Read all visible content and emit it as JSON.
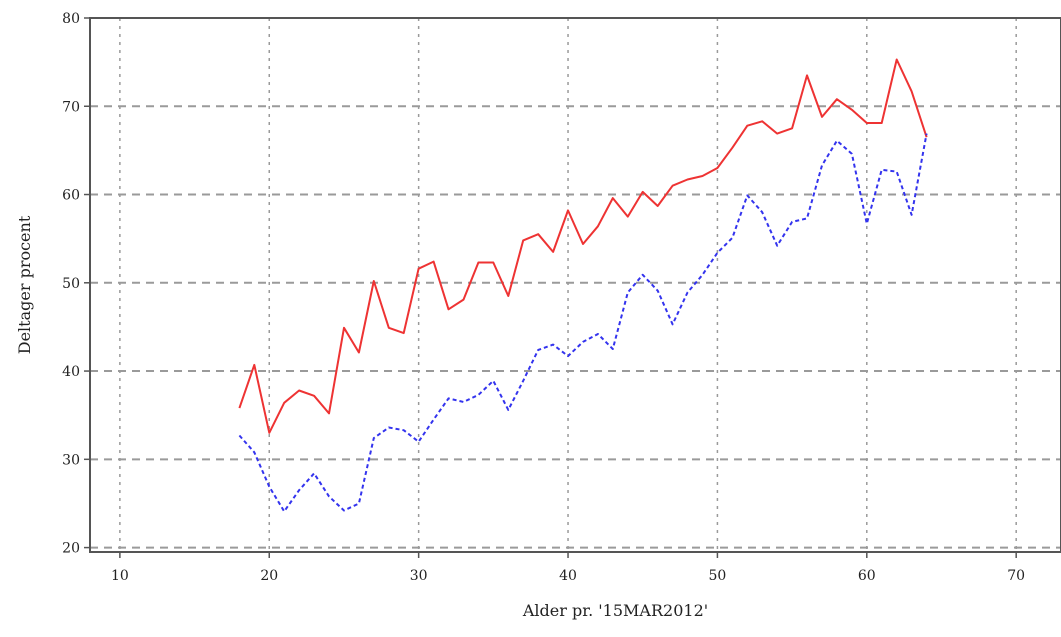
{
  "chart_data": {
    "type": "line",
    "title": "",
    "xlabel": "Alder pr. '15MAR2012'",
    "ylabel": "Deltager procent",
    "xlim": [
      8,
      73
    ],
    "ylim": [
      19.5,
      80
    ],
    "xticks": [
      10,
      20,
      30,
      40,
      50,
      60,
      70
    ],
    "yticks": [
      20,
      30,
      40,
      50,
      60,
      70,
      80
    ],
    "grid": true,
    "colors": {
      "series1": "#ee3333",
      "series2": "#3333ee",
      "grid": "#9a9a9a",
      "frame": "#555555"
    },
    "series": [
      {
        "style": "solid",
        "x": [
          18,
          19,
          20,
          21,
          22,
          23,
          24,
          25,
          26,
          27,
          28,
          29,
          30,
          31,
          32,
          33,
          34,
          35,
          36,
          37,
          38,
          39,
          40,
          41,
          42,
          43,
          44,
          45,
          46,
          47,
          48,
          49,
          50,
          51,
          52,
          53,
          54,
          55,
          56,
          57,
          58,
          59,
          60,
          61,
          62,
          63,
          64
        ],
        "values": [
          35.8,
          40.7,
          33.0,
          36.4,
          37.8,
          37.2,
          35.2,
          44.9,
          42.1,
          50.2,
          44.9,
          44.3,
          51.6,
          52.4,
          47.0,
          48.1,
          52.3,
          52.3,
          48.5,
          54.8,
          55.5,
          53.5,
          58.2,
          54.4,
          56.4,
          59.6,
          57.5,
          60.3,
          58.7,
          61.0,
          61.7,
          62.1,
          63.0,
          65.3,
          67.8,
          68.3,
          66.9,
          67.5,
          73.5,
          68.8,
          70.8,
          69.6,
          68.1,
          68.1,
          75.3,
          71.7,
          66.5
        ]
      },
      {
        "style": "dashed",
        "x": [
          18,
          19,
          20,
          21,
          22,
          23,
          24,
          25,
          26,
          27,
          28,
          29,
          30,
          31,
          32,
          33,
          34,
          35,
          36,
          37,
          38,
          39,
          40,
          41,
          42,
          43,
          44,
          45,
          46,
          47,
          48,
          49,
          50,
          51,
          52,
          53,
          54,
          55,
          56,
          57,
          58,
          59,
          60,
          61,
          62,
          63,
          64
        ],
        "values": [
          32.7,
          30.8,
          26.9,
          24.1,
          26.5,
          28.4,
          25.8,
          24.2,
          25.0,
          32.4,
          33.6,
          33.3,
          32.0,
          34.5,
          36.9,
          36.5,
          37.3,
          38.9,
          35.6,
          38.9,
          42.4,
          43.0,
          41.7,
          43.3,
          44.2,
          42.5,
          48.9,
          50.9,
          49.1,
          45.3,
          48.9,
          50.9,
          53.4,
          55.1,
          59.9,
          58.0,
          54.2,
          56.9,
          57.3,
          63.3,
          66.1,
          64.6,
          56.7,
          62.8,
          62.6,
          57.7,
          66.9
        ]
      }
    ]
  }
}
